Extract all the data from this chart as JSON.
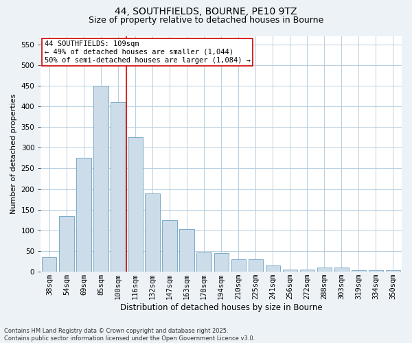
{
  "title_line1": "44, SOUTHFIELDS, BOURNE, PE10 9TZ",
  "title_line2": "Size of property relative to detached houses in Bourne",
  "xlabel": "Distribution of detached houses by size in Bourne",
  "ylabel": "Number of detached properties",
  "categories": [
    "38sqm",
    "54sqm",
    "69sqm",
    "85sqm",
    "100sqm",
    "116sqm",
    "132sqm",
    "147sqm",
    "163sqm",
    "178sqm",
    "194sqm",
    "210sqm",
    "225sqm",
    "241sqm",
    "256sqm",
    "272sqm",
    "288sqm",
    "303sqm",
    "319sqm",
    "334sqm",
    "350sqm"
  ],
  "values": [
    35,
    135,
    275,
    450,
    410,
    325,
    190,
    125,
    103,
    46,
    45,
    30,
    30,
    15,
    6,
    5,
    10,
    10,
    4,
    4,
    3
  ],
  "bar_color": "#ccdce8",
  "bar_edge_color": "#7aaac8",
  "vline_x_index": 4,
  "vline_color": "#cc0000",
  "annotation_text": "44 SOUTHFIELDS: 109sqm\n← 49% of detached houses are smaller (1,044)\n50% of semi-detached houses are larger (1,084) →",
  "annotation_box_facecolor": "#ffffff",
  "annotation_box_edgecolor": "#cc0000",
  "ylim": [
    0,
    570
  ],
  "yticks": [
    0,
    50,
    100,
    150,
    200,
    250,
    300,
    350,
    400,
    450,
    500,
    550
  ],
  "footer_line1": "Contains HM Land Registry data © Crown copyright and database right 2025.",
  "footer_line2": "Contains public sector information licensed under the Open Government Licence v3.0.",
  "bg_color": "#edf2f7",
  "plot_bg_color": "#ffffff",
  "grid_color": "#b8cfe0",
  "title_fontsize": 10,
  "subtitle_fontsize": 9,
  "ylabel_fontsize": 8,
  "xlabel_fontsize": 8.5,
  "tick_fontsize": 7.5,
  "annot_fontsize": 7.5,
  "footer_fontsize": 6
}
